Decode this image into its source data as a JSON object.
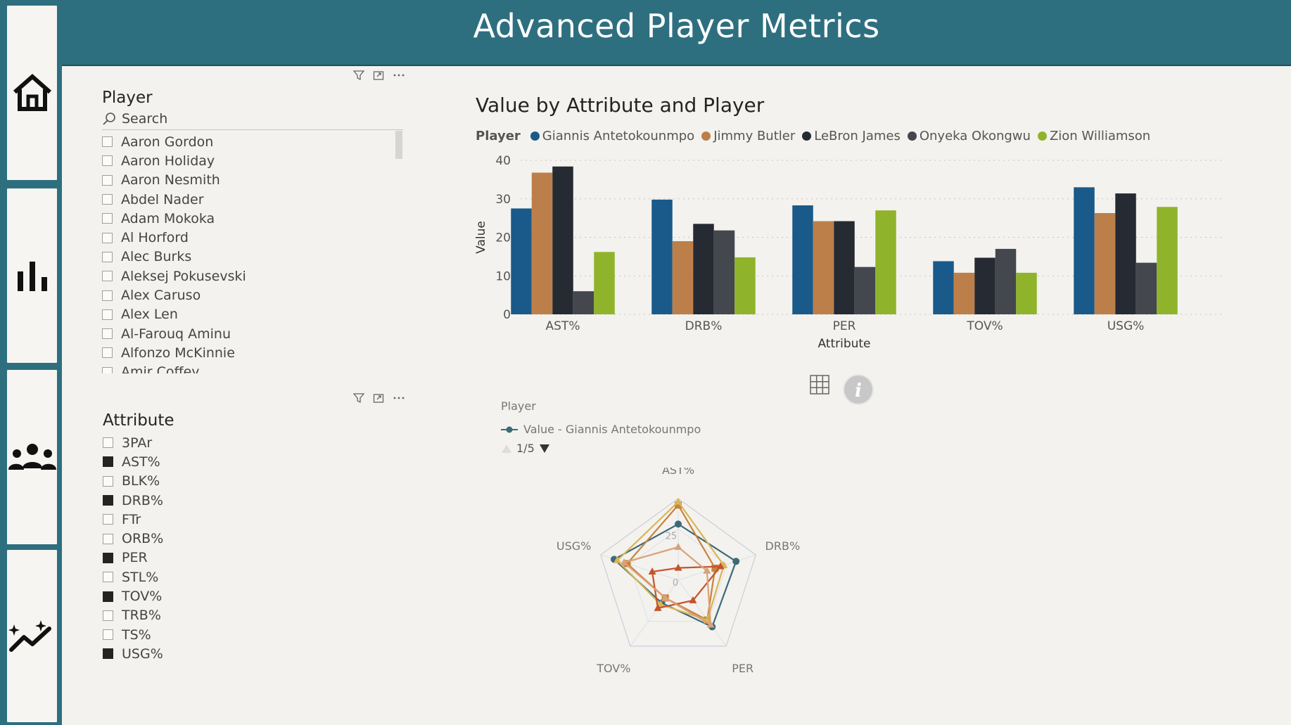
{
  "header": {
    "title": "Advanced Player Metrics"
  },
  "nav": [
    {
      "icon": "home-icon"
    },
    {
      "icon": "bar-chart-icon"
    },
    {
      "icon": "people-icon"
    },
    {
      "icon": "trend-sparkle-icon"
    }
  ],
  "player_slicer": {
    "title": "Player",
    "search_placeholder": "Search",
    "items": [
      "Aaron Gordon",
      "Aaron Holiday",
      "Aaron Nesmith",
      "Abdel Nader",
      "Adam Mokoka",
      "Al Horford",
      "Alec Burks",
      "Aleksej Pokusevski",
      "Alex Caruso",
      "Alex Len",
      "Al-Farouq Aminu",
      "Alfonzo McKinnie",
      "Amir Coffey"
    ]
  },
  "attribute_slicer": {
    "title": "Attribute",
    "items": [
      {
        "label": "3PAr",
        "checked": false
      },
      {
        "label": "AST%",
        "checked": true
      },
      {
        "label": "BLK%",
        "checked": false
      },
      {
        "label": "DRB%",
        "checked": true
      },
      {
        "label": "FTr",
        "checked": false
      },
      {
        "label": "ORB%",
        "checked": false
      },
      {
        "label": "PER",
        "checked": true
      },
      {
        "label": "STL%",
        "checked": false
      },
      {
        "label": "TOV%",
        "checked": true
      },
      {
        "label": "TRB%",
        "checked": false
      },
      {
        "label": "TS%",
        "checked": false
      },
      {
        "label": "USG%",
        "checked": true
      }
    ]
  },
  "chart_data": [
    {
      "type": "bar",
      "title": "Value by Attribute and Player",
      "legend_title": "Player",
      "legend_position": "top-left",
      "xlabel": "Attribute",
      "ylabel": "Value",
      "ylim": [
        0,
        40
      ],
      "yticks": [
        "0",
        "10",
        "20",
        "30",
        "40"
      ],
      "grid": true,
      "categories": [
        "AST%",
        "DRB%",
        "PER",
        "TOV%",
        "USG%"
      ],
      "series": [
        {
          "name": "Giannis Antetokounmpo",
          "color": "#1a5a8a",
          "values": [
            27.5,
            29.8,
            28.3,
            13.8,
            33.0
          ]
        },
        {
          "name": "Jimmy Butler",
          "color": "#bd7f49",
          "values": [
            36.8,
            19.0,
            24.2,
            10.8,
            26.3
          ]
        },
        {
          "name": "LeBron James",
          "color": "#252a33",
          "values": [
            38.4,
            23.5,
            24.2,
            14.7,
            31.4
          ]
        },
        {
          "name": "Onyeka Okongwu",
          "color": "#45474e",
          "values": [
            6.0,
            21.8,
            12.3,
            17.0,
            13.4
          ]
        },
        {
          "name": "Zion Williamson",
          "color": "#8fb42b",
          "values": [
            16.2,
            14.8,
            27.0,
            10.8,
            27.9
          ]
        }
      ]
    },
    {
      "type": "radar",
      "legend_title": "Player",
      "legend_entry": "Value - Giannis Antetokounmpo",
      "page_indicator": "1/5",
      "axes": [
        "AST%",
        "DRB%",
        "PER",
        "TOV%",
        "USG%"
      ],
      "scale_labels": [
        "0",
        "25"
      ],
      "rmax": 40,
      "series": [
        {
          "name": "Giannis Antetokounmpo",
          "color": "#3d6a78",
          "values": [
            27.5,
            29.8,
            28.3,
            13.8,
            33.0
          ]
        },
        {
          "name": "Jimmy Butler",
          "color": "#c9823e",
          "values": [
            36.8,
            19.0,
            24.2,
            10.8,
            26.3
          ]
        },
        {
          "name": "LeBron James",
          "color": "#d9b554",
          "values": [
            38.4,
            23.5,
            24.2,
            14.7,
            31.4
          ]
        },
        {
          "name": "Onyeka Okongwu",
          "color": "#c5532c",
          "values": [
            6.0,
            21.8,
            12.3,
            17.0,
            13.4
          ]
        },
        {
          "name": "Zion Williamson",
          "color": "#d9a27a",
          "values": [
            16.2,
            14.8,
            27.0,
            10.8,
            27.9
          ]
        }
      ]
    }
  ]
}
